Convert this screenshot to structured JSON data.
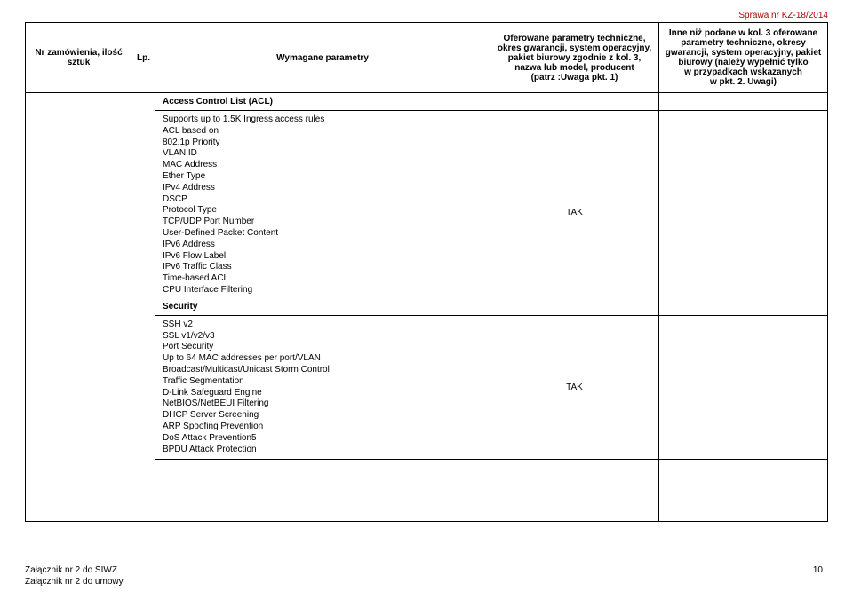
{
  "case_number": "Sprawa nr KZ-18/2014",
  "headers": {
    "col1": "Nr zamówienia, ilość sztuk",
    "col2": "Lp.",
    "col3": "Wymagane parametry",
    "col4": "Oferowane parametry techniczne, okres gwarancji, system operacyjny, pakiet biurowy zgodnie z kol. 3,\nnazwa lub model, producent\n(patrz :Uwaga pkt. 1)",
    "col5": "Inne niż podane w kol. 3 oferowane parametry techniczne, okresy gwarancji, system operacyjny, pakiet biurowy (należy wypełnić tylko\nw przypadkach wskazanych\nw pkt. 2. Uwagi)"
  },
  "rows": {
    "acl_title": "Access Control List (ACL)",
    "acl_body": "Supports up to 1.5K Ingress access rules\nACL based on\n802.1p Priority\nVLAN ID\nMAC Address\nEther Type\nIPv4 Address\nDSCP\nProtocol Type\nTCP/UDP Port Number\nUser-Defined Packet Content\nIPv6 Address\nIPv6 Flow Label\nIPv6 Traffic Class\nTime-based ACL\nCPU Interface Filtering",
    "acl_tak": "TAK",
    "sec_title": "Security",
    "sec_body": "SSH v2\nSSL v1/v2/v3\nPort Security\nUp to 64 MAC addresses per port/VLAN\nBroadcast/Multicast/Unicast Storm Control\nTraffic Segmentation\nD-Link Safeguard Engine\nNetBIOS/NetBEUI Filtering\nDHCP Server Screening\nARP Spoofing Prevention\nDoS Attack Prevention5\nBPDU Attack Protection",
    "sec_tak": "TAK"
  },
  "footer": {
    "line1": "Załącznik nr 2 do SIWZ",
    "line2": "Załącznik nr 2 do umowy"
  },
  "page_number": "10",
  "colors": {
    "case_color": "#b00000",
    "border": "#000000",
    "bg": "#ffffff"
  }
}
